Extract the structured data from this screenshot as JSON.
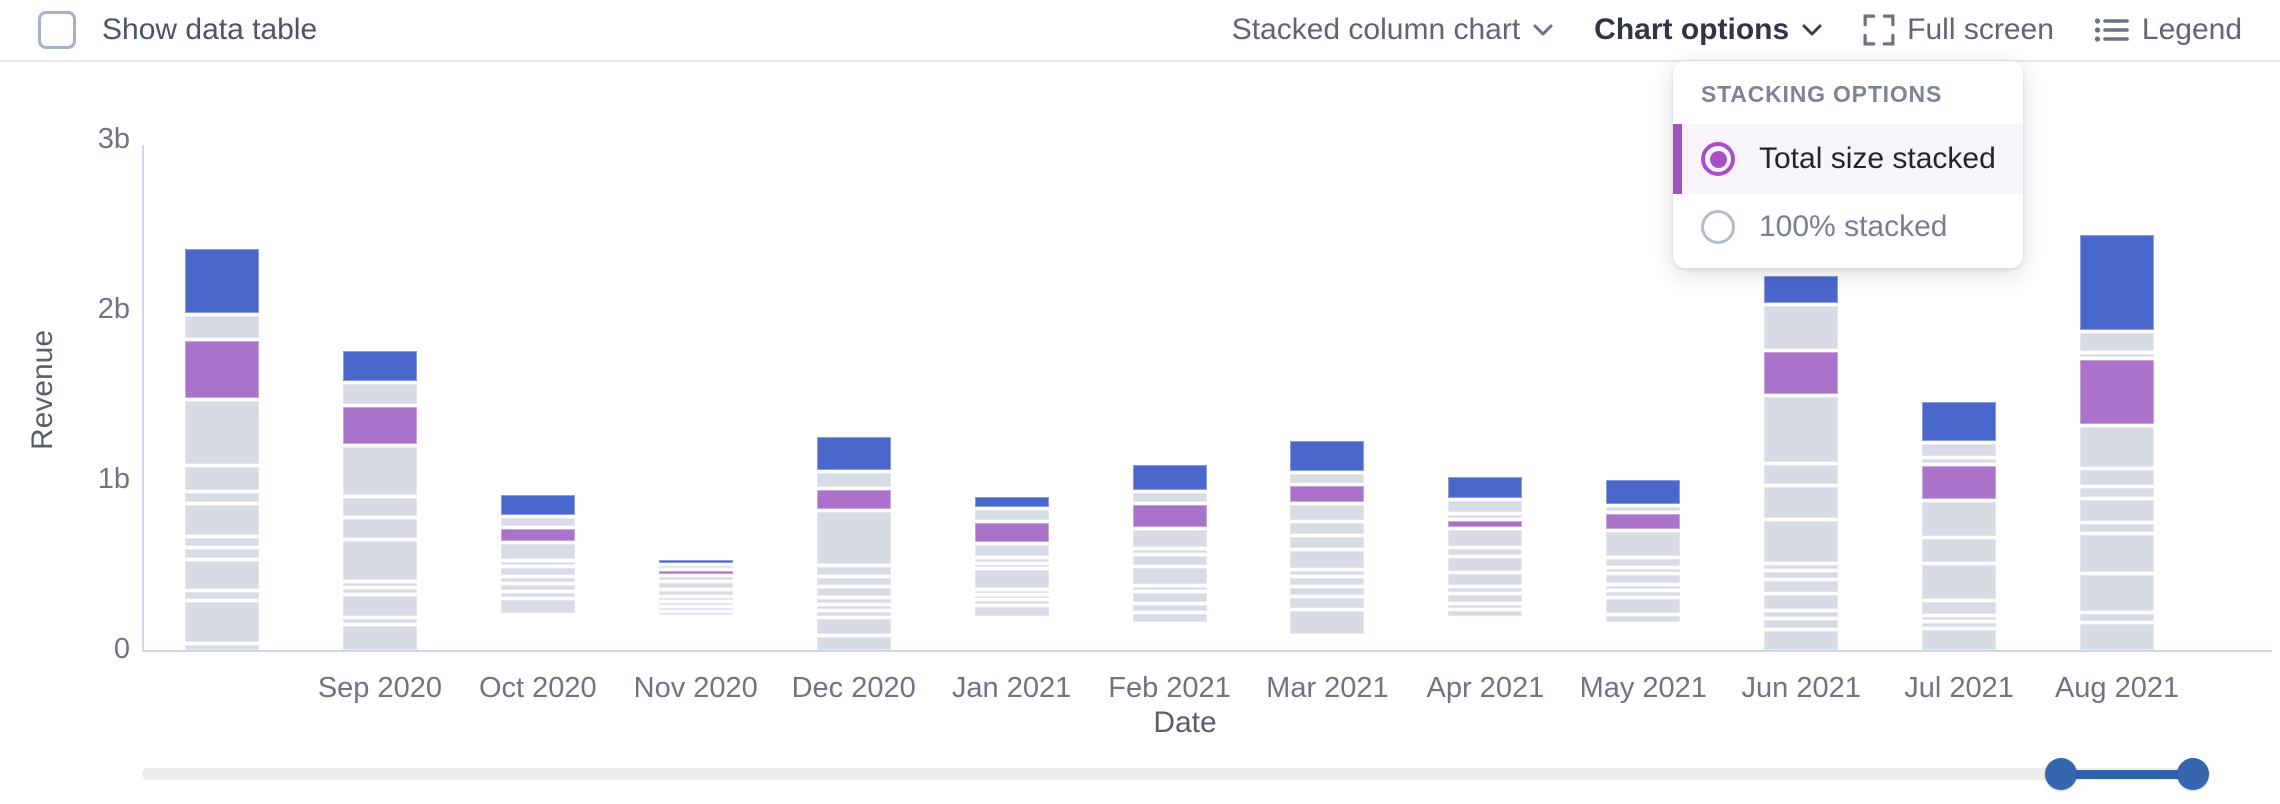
{
  "toolbar": {
    "show_data_table": "Show data table",
    "chart_type": "Stacked column chart",
    "chart_options": "Chart options",
    "full_screen": "Full screen",
    "legend": "Legend"
  },
  "popover": {
    "title": "STACKING OPTIONS",
    "options": [
      {
        "label": "Total size stacked",
        "selected": true
      },
      {
        "label": "100% stacked",
        "selected": false
      }
    ]
  },
  "chart_data": {
    "type": "bar",
    "stacked": true,
    "stacking_mode": "Total size stacked",
    "xlabel": "Date",
    "ylabel": "Revenue",
    "value_unit": "billions",
    "ylim": [
      0,
      3
    ],
    "grid": false,
    "legend_visible": false,
    "y_ticks": [
      {
        "label": "0",
        "value": 0
      },
      {
        "label": "1b",
        "value": 1
      },
      {
        "label": "2b",
        "value": 2
      },
      {
        "label": "3b",
        "value": 3
      }
    ],
    "series_colors": {
      "blue": "#4a67cb",
      "purple": "#ab72c9",
      "gray": "#d6dbe4"
    },
    "bars": [
      {
        "label": "",
        "total": 2.36,
        "segments": [
          [
            "blue",
            0.36
          ],
          [
            "gray",
            0.12
          ],
          [
            "purple",
            0.32
          ],
          [
            "gray",
            0.35
          ],
          [
            "gray",
            0.13
          ],
          [
            "gray",
            0.05
          ],
          [
            "gray",
            0.17
          ],
          [
            "gray",
            0.04
          ],
          [
            "gray",
            0.05
          ],
          [
            "gray",
            0.16
          ],
          [
            "gray",
            0.04
          ],
          [
            "gray",
            0.22
          ],
          [
            "gray",
            0.03
          ]
        ]
      },
      {
        "label": "Sep 2020",
        "total": 1.76,
        "segments": [
          [
            "blue",
            0.16
          ],
          [
            "gray",
            0.11
          ],
          [
            "purple",
            0.2
          ],
          [
            "gray",
            0.26
          ],
          [
            "gray",
            0.1
          ],
          [
            "gray",
            0.1
          ],
          [
            "gray",
            0.21
          ],
          [
            "gray",
            0.02
          ],
          [
            "gray",
            0.02
          ],
          [
            "gray",
            0.11
          ],
          [
            "gray",
            0.02
          ],
          [
            "gray",
            0.13
          ]
        ]
      },
      {
        "label": "Oct 2020",
        "total": 0.91,
        "segments": [
          [
            "blue",
            0.16
          ],
          [
            "gray",
            0.06
          ],
          [
            "purple",
            0.09
          ],
          [
            "gray",
            0.12
          ],
          [
            "gray",
            0.02
          ],
          [
            "gray",
            0.06
          ],
          [
            "gray",
            0.03
          ],
          [
            "gray",
            0.04
          ],
          [
            "gray",
            0.03
          ],
          [
            "gray",
            0.1
          ]
        ]
      },
      {
        "label": "Nov 2020",
        "total": 0.53,
        "segments": [
          [
            "blue",
            0.06
          ],
          [
            "gray",
            0.02
          ],
          [
            "purple",
            0.04
          ],
          [
            "gray",
            0.06
          ],
          [
            "gray",
            0.09
          ],
          [
            "gray",
            0.07
          ],
          [
            "gray",
            0.02
          ],
          [
            "gray",
            0.02
          ],
          [
            "gray",
            0.05
          ],
          [
            "gray",
            0.02
          ]
        ]
      },
      {
        "label": "Dec 2020",
        "total": 1.25,
        "segments": [
          [
            "blue",
            0.21
          ],
          [
            "gray",
            0.09
          ],
          [
            "purple",
            0.12
          ],
          [
            "gray",
            0.33
          ],
          [
            "gray",
            0.05
          ],
          [
            "gray",
            0.04
          ],
          [
            "gray",
            0.05
          ],
          [
            "gray",
            0.03
          ],
          [
            "gray",
            0.02
          ],
          [
            "gray",
            0.02
          ],
          [
            "gray",
            0.1
          ],
          [
            "gray",
            0.08
          ]
        ]
      },
      {
        "label": "Jan 2021",
        "total": 0.9,
        "segments": [
          [
            "blue",
            0.08
          ],
          [
            "gray",
            0.08
          ],
          [
            "purple",
            0.16
          ],
          [
            "gray",
            0.09
          ],
          [
            "gray",
            0.02
          ],
          [
            "gray",
            0.02
          ],
          [
            "gray",
            0.14
          ],
          [
            "gray",
            0.02
          ],
          [
            "gray",
            0.02
          ],
          [
            "gray",
            0.02
          ],
          [
            "gray",
            0.07
          ]
        ]
      },
      {
        "label": "Feb 2021",
        "total": 1.09,
        "segments": [
          [
            "blue",
            0.16
          ],
          [
            "gray",
            0.06
          ],
          [
            "purple",
            0.14
          ],
          [
            "gray",
            0.11
          ],
          [
            "gray",
            0.02
          ],
          [
            "gray",
            0.06
          ],
          [
            "gray",
            0.1
          ],
          [
            "gray",
            0.02
          ],
          [
            "gray",
            0.06
          ],
          [
            "gray",
            0.04
          ],
          [
            "gray",
            0.05
          ]
        ]
      },
      {
        "label": "Mar 2021",
        "total": 1.23,
        "segments": [
          [
            "blue",
            0.17
          ],
          [
            "gray",
            0.05
          ],
          [
            "purple",
            0.09
          ],
          [
            "gray",
            0.09
          ],
          [
            "gray",
            0.06
          ],
          [
            "gray",
            0.06
          ],
          [
            "gray",
            0.1
          ],
          [
            "gray",
            0.02
          ],
          [
            "gray",
            0.04
          ],
          [
            "gray",
            0.04
          ],
          [
            "gray",
            0.06
          ],
          [
            "gray",
            0.13
          ]
        ]
      },
      {
        "label": "Apr 2021",
        "total": 1.02,
        "segments": [
          [
            "blue",
            0.15
          ],
          [
            "gray",
            0.08
          ],
          [
            "gray",
            0.02
          ],
          [
            "purple",
            0.04
          ],
          [
            "gray",
            0.12
          ],
          [
            "gray",
            0.04
          ],
          [
            "gray",
            0.09
          ],
          [
            "gray",
            0.08
          ],
          [
            "gray",
            0.03
          ],
          [
            "gray",
            0.05
          ],
          [
            "gray",
            0.02
          ],
          [
            "gray",
            0.04
          ]
        ]
      },
      {
        "label": "May 2021",
        "total": 1.0,
        "segments": [
          [
            "blue",
            0.17
          ],
          [
            "gray",
            0.03
          ],
          [
            "purple",
            0.11
          ],
          [
            "gray",
            0.17
          ],
          [
            "gray",
            0.05
          ],
          [
            "gray",
            0.02
          ],
          [
            "gray",
            0.06
          ],
          [
            "gray",
            0.02
          ],
          [
            "gray",
            0.03
          ],
          [
            "gray",
            0.1
          ],
          [
            "gray",
            0.04
          ]
        ]
      },
      {
        "label": "Jun 2021",
        "total": 2.2,
        "segments": [
          [
            "blue",
            0.14
          ],
          [
            "gray",
            0.23
          ],
          [
            "purple",
            0.22
          ],
          [
            "gray",
            0.34
          ],
          [
            "gray",
            0.1
          ],
          [
            "gray",
            0.16
          ],
          [
            "gray",
            0.22
          ],
          [
            "gray",
            0.02
          ],
          [
            "gray",
            0.03
          ],
          [
            "gray",
            0.06
          ],
          [
            "gray",
            0.07
          ],
          [
            "gray",
            0.03
          ],
          [
            "gray",
            0.04
          ],
          [
            "gray",
            0.1
          ]
        ]
      },
      {
        "label": "Jul 2021",
        "total": 1.46,
        "segments": [
          [
            "blue",
            0.2
          ],
          [
            "gray",
            0.06
          ],
          [
            "gray",
            0.02
          ],
          [
            "purple",
            0.17
          ],
          [
            "gray",
            0.17
          ],
          [
            "gray",
            0.12
          ],
          [
            "gray",
            0.17
          ],
          [
            "gray",
            0.06
          ],
          [
            "gray",
            0.02
          ],
          [
            "gray",
            0.02
          ],
          [
            "gray",
            0.1
          ]
        ]
      },
      {
        "label": "Aug 2021",
        "total": 2.44,
        "segments": [
          [
            "blue",
            0.55
          ],
          [
            "gray",
            0.1
          ],
          [
            "gray",
            0.02
          ],
          [
            "purple",
            0.37
          ],
          [
            "gray",
            0.23
          ],
          [
            "gray",
            0.09
          ],
          [
            "gray",
            0.05
          ],
          [
            "gray",
            0.12
          ],
          [
            "gray",
            0.05
          ],
          [
            "gray",
            0.21
          ],
          [
            "gray",
            0.21
          ],
          [
            "gray",
            0.04
          ],
          [
            "gray",
            0.15
          ]
        ]
      }
    ]
  },
  "slider": {
    "range": [
      0.928,
      0.992
    ]
  },
  "colors": {
    "accent_purple": "#a253c1",
    "radio_purple": "#a74fc7",
    "selected_row_bg": "#f8f4fc",
    "slider_blue": "#3566ae",
    "axis_line": "#ccd6ea"
  }
}
